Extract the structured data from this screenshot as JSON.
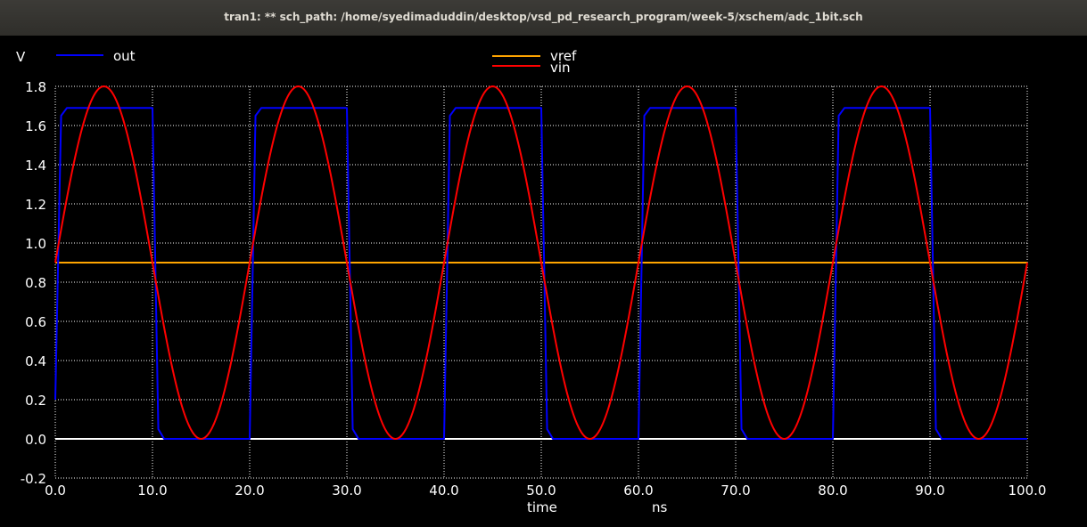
{
  "window": {
    "title": "tran1: ** sch_path: /home/syedimaduddin/desktop/vsd_pd_research_program/week-5/xschem/adc_1bit.sch"
  },
  "chart_data": {
    "type": "line",
    "y_unit_label": "V",
    "xlabel": "time",
    "x_unit_label": "ns",
    "xlim": [
      0,
      100
    ],
    "ylim": [
      -0.2,
      1.8
    ],
    "x_ticks": [
      "0.0",
      "10.0",
      "20.0",
      "30.0",
      "40.0",
      "50.0",
      "60.0",
      "70.0",
      "80.0",
      "90.0",
      "100.0"
    ],
    "y_ticks": [
      "-0.2",
      "0.0",
      "0.2",
      "0.4",
      "0.6",
      "0.8",
      "1.0",
      "1.2",
      "1.4",
      "1.6",
      "1.8"
    ],
    "x_tick_values": [
      0,
      10,
      20,
      30,
      40,
      50,
      60,
      70,
      80,
      90,
      100
    ],
    "y_tick_values": [
      -0.2,
      0,
      0.2,
      0.4,
      0.6,
      0.8,
      1.0,
      1.2,
      1.4,
      1.6,
      1.8
    ],
    "grid": true,
    "legend_placement": "top",
    "series": [
      {
        "name": "out",
        "color": "#0000ff",
        "x": [
          0,
          0.6,
          1.2,
          10,
          10.6,
          11.2,
          20,
          20.6,
          21.2,
          30,
          30.6,
          31.2,
          40,
          40.6,
          41.2,
          50,
          50.6,
          51.2,
          60,
          60.6,
          61.2,
          70,
          70.6,
          71.2,
          80,
          80.6,
          81.2,
          90,
          90.6,
          91.2,
          100
        ],
        "y": [
          0.2,
          1.65,
          1.69,
          1.69,
          0.05,
          0,
          0,
          1.65,
          1.69,
          1.69,
          0.05,
          0,
          0,
          1.65,
          1.69,
          1.69,
          0.05,
          0,
          0,
          1.65,
          1.69,
          1.69,
          0.05,
          0,
          0,
          1.65,
          1.69,
          1.69,
          0.05,
          0,
          0
        ]
      },
      {
        "name": "vref",
        "color": "#ffa500",
        "x": [
          0,
          100
        ],
        "y": [
          0.9,
          0.9
        ]
      },
      {
        "name": "vin",
        "color": "#ff0000",
        "function": "sine",
        "offset": 0.9,
        "amplitude": 0.9,
        "period": 20,
        "phase": 0
      }
    ],
    "zero_line_color": "#ffffff"
  }
}
